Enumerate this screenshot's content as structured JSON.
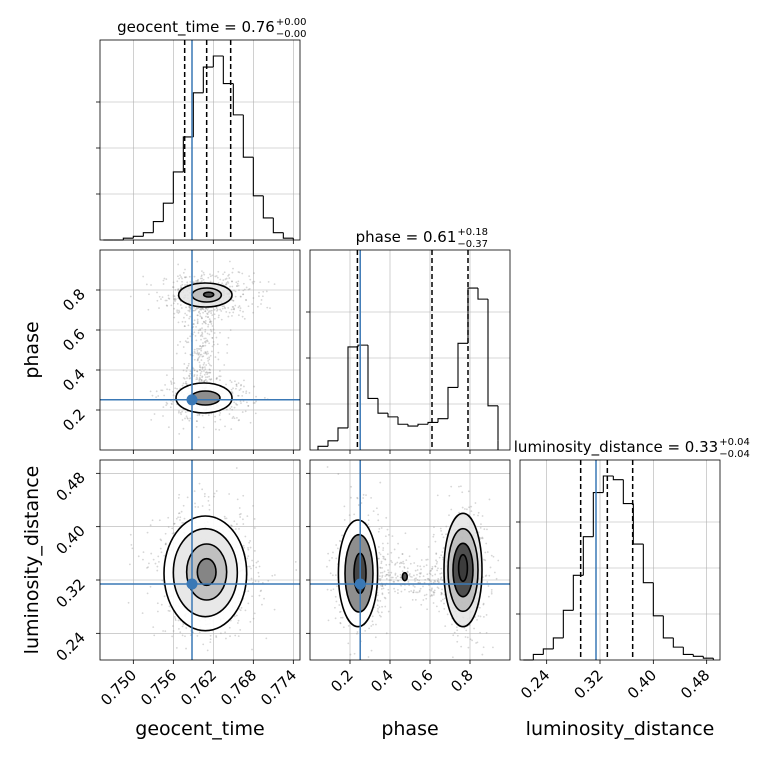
{
  "colors": {
    "truth": "#3a78b5",
    "hist": "#000000",
    "grid": "#b0b0b0",
    "quantile": "#000000",
    "density_cmap": "grey"
  },
  "chart_data": [
    {
      "type": "histogram",
      "panel": "geocent_time",
      "title": {
        "main": "geocent_time = 0.76",
        "sup": "+0.00",
        "sub": "−0.00"
      },
      "xlim": [
        0.745,
        0.775
      ],
      "bins": [
        0.7455,
        0.747,
        0.7485,
        0.75,
        0.7515,
        0.753,
        0.7545,
        0.756,
        0.7575,
        0.759,
        0.7605,
        0.762,
        0.7635,
        0.765,
        0.7665,
        0.768,
        0.7695,
        0.771,
        0.7725,
        0.774
      ],
      "counts": [
        0.0,
        0.0,
        0.01,
        0.02,
        0.04,
        0.1,
        0.2,
        0.37,
        0.56,
        0.8,
        0.94,
        1.0,
        0.85,
        0.68,
        0.45,
        0.24,
        0.12,
        0.04,
        0.01
      ],
      "quantiles": [
        0.7577,
        0.761,
        0.7646
      ],
      "truth": 0.7588
    },
    {
      "type": "histogram",
      "panel": "phase",
      "title": {
        "main": "phase = 0.61",
        "sup": "+0.18",
        "sub": "−0.37"
      },
      "xlim": [
        0.0,
        1.0
      ],
      "bins": [
        0.04,
        0.09,
        0.14,
        0.19,
        0.24,
        0.29,
        0.34,
        0.39,
        0.44,
        0.49,
        0.54,
        0.59,
        0.64,
        0.69,
        0.74,
        0.79,
        0.84,
        0.89,
        0.94
      ],
      "counts": [
        0.02,
        0.05,
        0.12,
        0.56,
        0.57,
        0.28,
        0.2,
        0.18,
        0.14,
        0.13,
        0.14,
        0.15,
        0.17,
        0.34,
        0.58,
        0.88,
        0.82,
        0.24,
        0.05
      ],
      "quantiles": [
        0.237,
        0.61,
        0.79
      ],
      "truth": 0.251
    },
    {
      "type": "histogram",
      "panel": "luminosity_distance",
      "title": {
        "main": "luminosity_distance = 0.33",
        "sup": "+0.04",
        "sub": "−0.04"
      },
      "xlim": [
        0.2,
        0.5
      ],
      "bins": [
        0.205,
        0.22,
        0.235,
        0.25,
        0.265,
        0.28,
        0.295,
        0.31,
        0.325,
        0.34,
        0.355,
        0.37,
        0.385,
        0.4,
        0.415,
        0.43,
        0.445,
        0.46,
        0.475,
        0.49
      ],
      "counts": [
        0.0,
        0.03,
        0.06,
        0.12,
        0.27,
        0.46,
        0.67,
        0.91,
        1.0,
        0.98,
        0.85,
        0.63,
        0.42,
        0.24,
        0.12,
        0.07,
        0.03,
        0.02,
        0.01
      ],
      "quantiles": [
        0.291,
        0.331,
        0.369
      ],
      "truth": 0.314
    },
    {
      "type": "scatter-density",
      "panel": "geocent_time-phase",
      "x_param": "geocent_time",
      "y_param": "phase",
      "xlim": [
        0.745,
        0.775
      ],
      "ylim": [
        0.0,
        1.0
      ],
      "yticks": [
        0.2,
        0.4,
        0.6,
        0.8
      ],
      "ylabel": "phase",
      "modes": [
        {
          "x": 0.761,
          "y": 0.775,
          "sx": 0.0028,
          "sy": 0.045,
          "w": 0.55
        },
        {
          "x": 0.761,
          "y": 0.25,
          "sx": 0.0028,
          "sy": 0.045,
          "w": 0.4
        }
      ],
      "bridge": {
        "x": 0.7605,
        "y0": 0.3,
        "y1": 0.72,
        "sx": 0.0015
      },
      "contours": [
        {
          "cx": 0.7613,
          "cy": 0.777,
          "rx": 0.00075,
          "ry": 0.012
        },
        {
          "cx": 0.761,
          "cy": 0.775,
          "rx": 0.0022,
          "ry": 0.035
        },
        {
          "cx": 0.7608,
          "cy": 0.775,
          "rx": 0.004,
          "ry": 0.06
        },
        {
          "cx": 0.7608,
          "cy": 0.26,
          "rx": 0.0022,
          "ry": 0.035
        },
        {
          "cx": 0.7606,
          "cy": 0.26,
          "rx": 0.0042,
          "ry": 0.075
        }
      ],
      "truth": {
        "x": 0.7588,
        "y": 0.251
      }
    },
    {
      "type": "scatter-density",
      "panel": "geocent_time-luminosity_distance",
      "x_param": "geocent_time",
      "y_param": "luminosity_distance",
      "xlim": [
        0.745,
        0.775
      ],
      "ylim": [
        0.2,
        0.5
      ],
      "xticks": [
        0.75,
        0.756,
        0.762,
        0.768,
        0.774
      ],
      "xticklabels": [
        "0.750",
        "0.756",
        "0.762",
        "0.768",
        "0.774"
      ],
      "yticks": [
        0.24,
        0.32,
        0.4,
        0.48
      ],
      "yticklabels": [
        "0.24",
        "0.32",
        "0.40",
        "0.48"
      ],
      "xlabel": "geocent_time",
      "ylabel": "luminosity_distance",
      "modes": [
        {
          "x": 0.761,
          "y": 0.331,
          "sx": 0.003,
          "sy": 0.038,
          "w": 1.0
        }
      ],
      "contours": [
        {
          "cx": 0.761,
          "cy": 0.332,
          "rx": 0.0014,
          "ry": 0.02
        },
        {
          "cx": 0.761,
          "cy": 0.332,
          "rx": 0.003,
          "ry": 0.042
        },
        {
          "cx": 0.7608,
          "cy": 0.331,
          "rx": 0.0048,
          "ry": 0.066
        },
        {
          "cx": 0.7608,
          "cy": 0.33,
          "rx": 0.0062,
          "ry": 0.086
        }
      ],
      "truth": {
        "x": 0.7588,
        "y": 0.314
      }
    },
    {
      "type": "scatter-density",
      "panel": "phase-luminosity_distance",
      "x_param": "phase",
      "y_param": "luminosity_distance",
      "xlim": [
        0.0,
        1.0
      ],
      "ylim": [
        0.2,
        0.5
      ],
      "xticks": [
        0.2,
        0.4,
        0.6,
        0.8
      ],
      "xticklabels": [
        "0.2",
        "0.4",
        "0.6",
        "0.8"
      ],
      "xlabel": "phase",
      "modes": [
        {
          "x": 0.25,
          "y": 0.33,
          "sx": 0.055,
          "sy": 0.04,
          "w": 0.45
        },
        {
          "x": 0.77,
          "y": 0.332,
          "sx": 0.05,
          "sy": 0.04,
          "w": 0.5
        }
      ],
      "bridge": {
        "x0": 0.3,
        "x1": 0.72,
        "y": 0.325,
        "sy": 0.018
      },
      "contours": [
        {
          "cx": 0.765,
          "cy": 0.338,
          "rx": 0.022,
          "ry": 0.02
        },
        {
          "cx": 0.765,
          "cy": 0.335,
          "rx": 0.05,
          "ry": 0.04
        },
        {
          "cx": 0.765,
          "cy": 0.335,
          "rx": 0.075,
          "ry": 0.062
        },
        {
          "cx": 0.765,
          "cy": 0.335,
          "rx": 0.095,
          "ry": 0.085
        },
        {
          "cx": 0.25,
          "cy": 0.33,
          "rx": 0.03,
          "ry": 0.03
        },
        {
          "cx": 0.245,
          "cy": 0.33,
          "rx": 0.07,
          "ry": 0.058
        },
        {
          "cx": 0.24,
          "cy": 0.33,
          "rx": 0.098,
          "ry": 0.08
        },
        {
          "cx": 0.474,
          "cy": 0.325,
          "rx": 0.012,
          "ry": 0.006
        }
      ],
      "truth": {
        "x": 0.251,
        "y": 0.314
      }
    }
  ]
}
